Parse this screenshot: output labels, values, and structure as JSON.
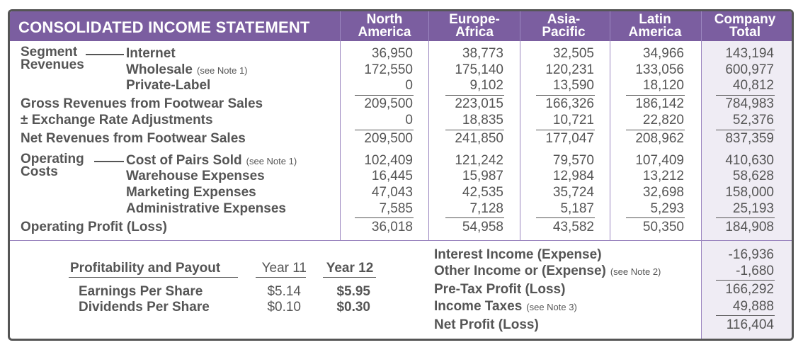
{
  "title": "CONSOLIDATED INCOME STATEMENT",
  "columns": [
    "North America",
    "Europe-Africa",
    "Asia-Pacific",
    "Latin America",
    "Company Total"
  ],
  "column_lines": [
    [
      "North",
      "America"
    ],
    [
      "Europe-",
      "Africa"
    ],
    [
      "Asia-",
      "Pacific"
    ],
    [
      "Latin",
      "America"
    ],
    [
      "Company",
      "Total"
    ]
  ],
  "groups": {
    "segment": [
      "Segment",
      "Revenues"
    ],
    "operating": [
      "Operating",
      "Costs"
    ]
  },
  "rows": [
    {
      "label": "Internet",
      "values": [
        "36,950",
        "38,773",
        "32,505",
        "34,966",
        "143,194"
      ]
    },
    {
      "label": "Wholesale",
      "note": "(see Note 1)",
      "values": [
        "172,550",
        "175,140",
        "120,231",
        "133,056",
        "600,977"
      ]
    },
    {
      "label": "Private-Label",
      "values": [
        "0",
        "9,102",
        "13,590",
        "18,120",
        "40,812"
      ]
    },
    {
      "label": "Gross Revenues from Footwear Sales",
      "values": [
        "209,500",
        "223,015",
        "166,326",
        "186,142",
        "784,983"
      ]
    },
    {
      "label": "± Exchange Rate Adjustments",
      "values": [
        "0",
        "18,835",
        "10,721",
        "22,820",
        "52,376"
      ]
    },
    {
      "label": "Net Revenues from Footwear Sales",
      "values": [
        "209,500",
        "241,850",
        "177,047",
        "208,962",
        "837,359"
      ]
    },
    {
      "label": "Cost of Pairs Sold",
      "note": "(see Note 1)",
      "values": [
        "102,409",
        "121,242",
        "79,570",
        "107,409",
        "410,630"
      ]
    },
    {
      "label": "Warehouse Expenses",
      "values": [
        "16,445",
        "15,987",
        "12,984",
        "13,212",
        "58,628"
      ]
    },
    {
      "label": "Marketing Expenses",
      "values": [
        "47,043",
        "42,535",
        "35,724",
        "32,698",
        "158,000"
      ]
    },
    {
      "label": "Administrative Expenses",
      "values": [
        "7,585",
        "7,128",
        "5,187",
        "5,293",
        "25,193"
      ]
    },
    {
      "label": "Operating Profit (Loss)",
      "values": [
        "36,018",
        "54,958",
        "43,582",
        "50,350",
        "184,908"
      ]
    }
  ],
  "bottom": [
    {
      "label": "Interest Income (Expense)",
      "value": "-16,936"
    },
    {
      "label": "Other Income or (Expense)",
      "note": "(see Note 2)",
      "value": "-1,680"
    },
    {
      "label": "Pre-Tax Profit (Loss)",
      "value": "166,292"
    },
    {
      "label": "Income Taxes",
      "note": "(see Note 3)",
      "value": "49,888"
    },
    {
      "label": "Net Profit (Loss)",
      "value": "116,404"
    }
  ],
  "payout": {
    "header": "Profitability and Payout",
    "year11": "Year 11",
    "year12": "Year 12",
    "rows": [
      {
        "label": "Earnings Per Share",
        "y11": "$5.14",
        "y12": "$5.95"
      },
      {
        "label": "Dividends Per Share",
        "y11": "$0.10",
        "y12": "$0.30"
      }
    ]
  },
  "colors": {
    "header": "#7b5ea0",
    "total_bg": "#efecf4",
    "text": "#555555"
  }
}
